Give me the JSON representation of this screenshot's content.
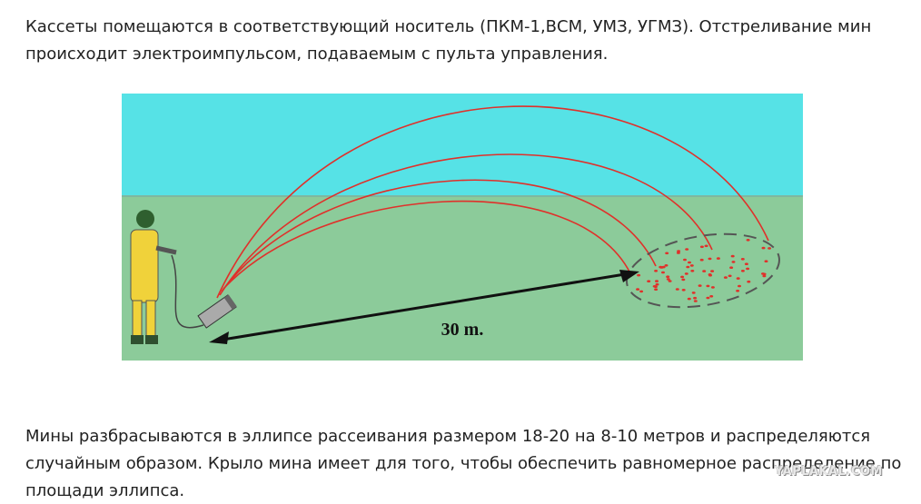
{
  "paragraphs": [
    "Кассеты помещаются в соответствующий носитель (ПКМ-1,ВСМ, УМЗ, УГМЗ). Отстреливание мин происходит электроимпульсом, подаваемым с пульта управления.",
    "Мины разбрасываются в эллипсе рассеивания размером 18-20 на 8-10 метров и распределяются случайным образом. Крыло мина имеет для того, чтобы обеспечить равномерное распределение по площади эллипса."
  ],
  "illustration": {
    "distance_label": "30 m."
  },
  "watermark": "YAPLAKAL.COM"
}
